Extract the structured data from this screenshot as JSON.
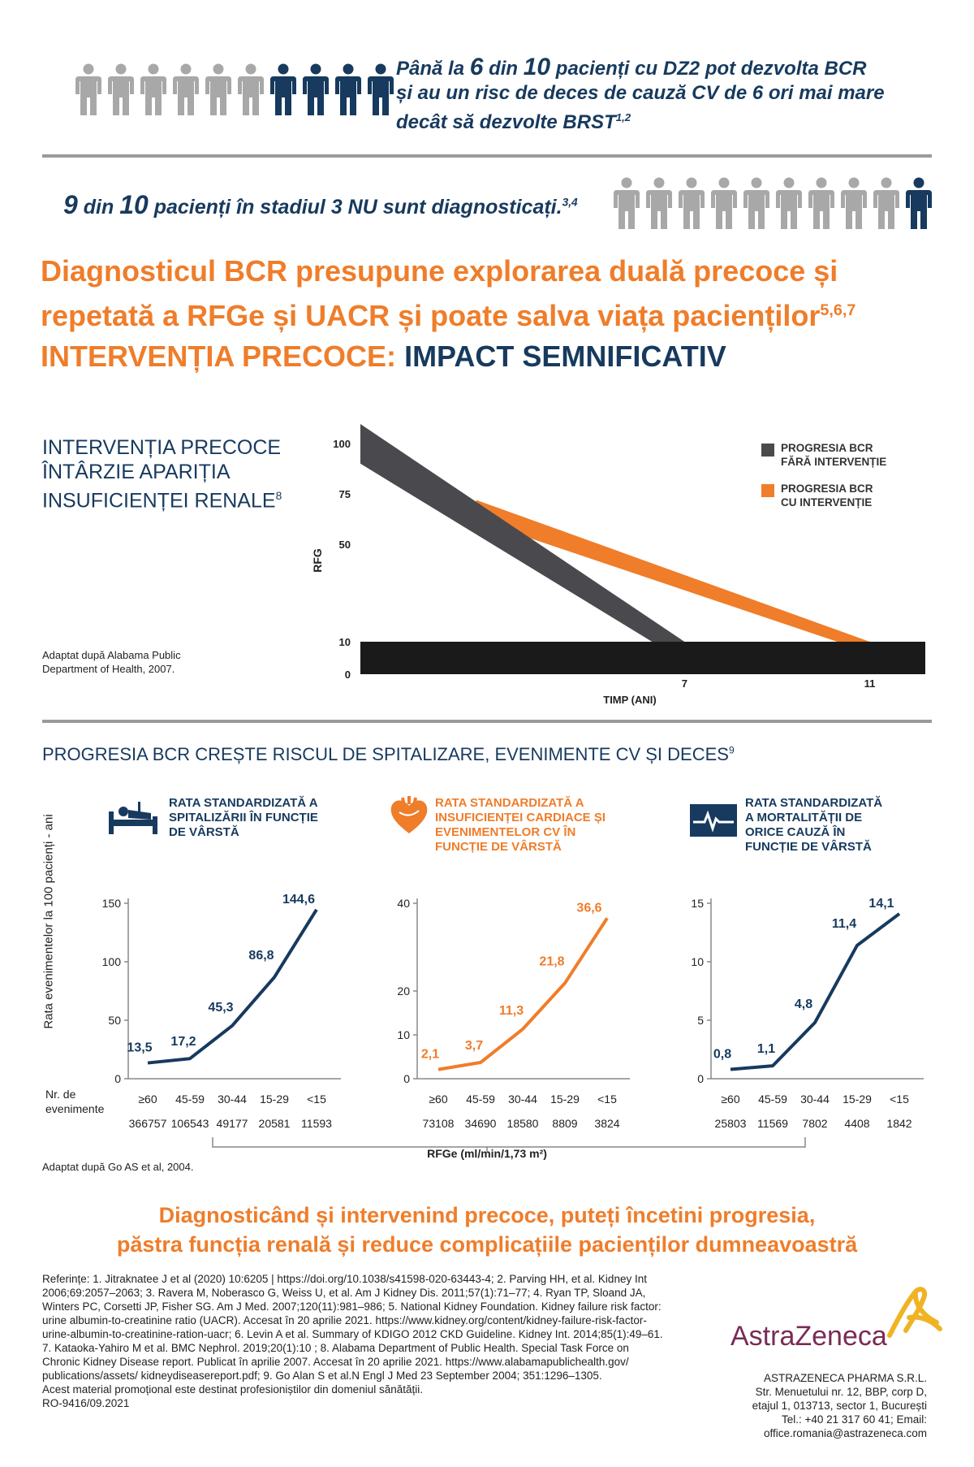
{
  "stat1": {
    "line1_pre": "Până la ",
    "n1": "6",
    "line1_mid": " din ",
    "n2": "10",
    "line1_post": " pacienți cu DZ2 pot dezvolta BCR",
    "line2": "și au un risc de deces de cauză CV de 6 ori mai mare",
    "line3": "decât să dezvolte BRST",
    "line3_sup": "1,2",
    "people_total": 10,
    "people_highlighted": 4
  },
  "stat2": {
    "n1": "9",
    "mid": " din ",
    "n2": "10",
    "text": " pacienți în stadiul 3 NU sunt diagnosticați.",
    "sup": "3,4",
    "people_total": 10,
    "people_highlighted": 1
  },
  "headline": {
    "line1": "Diagnosticul BCR presupune explorarea duală precoce și",
    "line2": "repetată a RFGe și UACR și poate salva viața pacienților",
    "sup": "5,6,7"
  },
  "subhead": {
    "part1": "INTERVENȚIA PRECOCE: ",
    "part2": "IMPACT SEMNIFICATIV"
  },
  "section1": {
    "title_line1": "INTERVENȚIA PRECOCE",
    "title_line2": "ÎNTÂRZIE APARIȚIA",
    "title_line3": "INSUFICIENȚEI RENALE",
    "title_sup": "8",
    "source_line1": "Adaptat după Alabama Public",
    "source_line2": "Department of Health, 2007."
  },
  "section2": {
    "title": "PROGRESIA BCR CREȘTE RISCUL DE SPITALIZARE, EVENIMENTE CV ȘI DECES",
    "title_sup": "9",
    "y_axis_label": "Rata evenimentelor la 100 pacienți - ani",
    "nr_label_line1": "Nr. de",
    "nr_label_line2": "evenimente",
    "shared_xlabel": "RFGe (ml/min/1,73 m²)",
    "source": "Adaptat după Go AS et al, 2004."
  },
  "colors": {
    "navy": "#173a5e",
    "orange": "#ef7d2a",
    "gray_person": "#a8a8a8",
    "dark_gray": "#4a4a4e",
    "black_band": "#1a1a1a"
  },
  "chart_data": [
    {
      "type": "area",
      "ylabel": "RFG",
      "xlabel": "TIMP (ANI)",
      "y_ticks": [
        "100",
        "75",
        "50",
        "10",
        "0"
      ],
      "x_ticks": [
        "7",
        "11"
      ],
      "series": [
        {
          "name": "PROGRESIA BCR FĂRĂ INTERVENȚIE",
          "color": "#4a4a4e",
          "x": [
            0,
            7
          ],
          "y_top": [
            115,
            10
          ],
          "y_bottom": [
            90,
            10
          ]
        },
        {
          "name": "PROGRESIA BCR CU INTERVENȚIE",
          "color": "#ef7d2a",
          "x": [
            2.5,
            11
          ],
          "y_top": [
            72,
            10
          ],
          "y_bottom": [
            62,
            10
          ]
        }
      ],
      "legend": [
        {
          "line1": "PROGRESIA BCR",
          "line2": "FĂRĂ INTERVENȚIE",
          "color": "#4a4a4e"
        },
        {
          "line1": "PROGRESIA BCR",
          "line2": "CU INTERVENȚIE",
          "color": "#ef7d2a"
        }
      ],
      "legend_position": "top-right"
    },
    {
      "type": "line",
      "title_lines": [
        "RATA STANDARDIZATĂ A",
        "SPITALIZĂRII ÎN FUNCȚIE",
        "DE VÂRSTĂ"
      ],
      "icon": "hospital-bed-icon",
      "color": "#173a5e",
      "ylim": [
        0,
        150
      ],
      "y_ticks": [
        "150",
        "100",
        "50",
        "0"
      ],
      "categories": [
        "≥60",
        "45-59",
        "30-44",
        "15-29",
        "<15"
      ],
      "values": [
        13.5,
        17.2,
        45.3,
        86.8,
        144.6
      ],
      "labels": [
        "13,5",
        "17,2",
        "45,3",
        "86,8",
        "144,6"
      ],
      "events": [
        "366757",
        "106543",
        "49177",
        "20581",
        "11593"
      ]
    },
    {
      "type": "line",
      "title_lines": [
        "RATA STANDARDIZATĂ A",
        "INSUFICIENȚEI CARDIACE ȘI",
        "EVENIMENTELOR CV ÎN",
        "FUNCȚIE DE VÂRSTĂ"
      ],
      "icon": "heart-icon",
      "color": "#ef7d2a",
      "ylim": [
        0,
        40
      ],
      "y_ticks": [
        "40",
        "20",
        "10",
        "0"
      ],
      "categories": [
        "≥60",
        "45-59",
        "30-44",
        "15-29",
        "<15"
      ],
      "values": [
        2.1,
        3.7,
        11.3,
        21.8,
        36.6
      ],
      "labels": [
        "2,1",
        "3,7",
        "11,3",
        "21,8",
        "36,6"
      ],
      "events": [
        "73108",
        "34690",
        "18580",
        "8809",
        "3824"
      ]
    },
    {
      "type": "line",
      "title_lines": [
        "RATA STANDARDIZATĂ",
        "A MORTALITĂȚII DE",
        "ORICE CAUZĂ ÎN",
        "FUNCȚIE DE VÂRSTĂ"
      ],
      "icon": "heart-monitor-icon",
      "color": "#173a5e",
      "ylim": [
        0,
        15
      ],
      "y_ticks": [
        "15",
        "10",
        "5",
        "0"
      ],
      "categories": [
        "≥60",
        "45-59",
        "30-44",
        "15-29",
        "<15"
      ],
      "values": [
        0.8,
        1.1,
        4.8,
        11.4,
        14.1
      ],
      "labels": [
        "0,8",
        "1,1",
        "4,8",
        "11,4",
        "14,1"
      ],
      "events": [
        "25803",
        "11569",
        "7802",
        "4408",
        "1842"
      ]
    }
  ],
  "closing": {
    "line1": "Diagnosticând și intervenind precoce, puteți încetini progresia,",
    "line2": "păstra funcția renală și reduce complicațiile pacienților dumneavoastră"
  },
  "references": {
    "lines": [
      "Referințe: 1. Jitraknatee J et al (2020) 10:6205 | https://doi.org/10.1038/s41598-020-63443-4; 2. Parving HH, et al. Kidney Int",
      "2006;69:2057–2063; 3. Ravera M, Noberasco G, Weiss U, et al. Am J Kidney Dis. 2011;57(1):71–77; 4. Ryan TP, Sloand JA,",
      "Winters PC, Corsetti JP, Fisher SG. Am J Med. 2007;120(11):981–986; 5. National Kidney Foundation. Kidney failure risk factor:",
      "urine albumin-to-creatinine  ratio (UACR). Accesat în 20 aprilie  2021. https://www.kidney.org/content/kidney-failure-risk-factor-",
      "urine-albumin-to-creatinine-ration-uacr; 6. Levin A et al. Summary of KDIGO 2012 CKD Guideline. Kidney Int. 2014;85(1):49–61.",
      "7. Kataoka-Yahiro M et al. BMC Nephrol. 2019;20(1):10 ; 8. Alabama Department of Public Health. Special Task Force on",
      "Chronic  Kidney Disease report. Publicat în aprilie 2007. Accesat în 20 aprilie 2021.  https://www.alabamapublichealth.gov/",
      "publications/assets/ kidneydiseasereport.pdf; 9. Go Alan S et al.N Engl J Med 23 September 2004; 351:1296–1305.",
      "Acest material promoțional este destinat profesioniștilor din domeniul sănătății.",
      "RO-9416/09.2021"
    ]
  },
  "company": {
    "logo_text": "AstraZeneca",
    "name": "ASTRAZENECA PHARMA S.R.L.",
    "address1": "Str. Menuetului nr. 12, BBP, corp D,",
    "address2": "etajul 1, 013713, sector 1, București",
    "phone": "Tel.: +40 21 317 60 41; Email:",
    "email": "office.romania@astrazeneca.com"
  }
}
